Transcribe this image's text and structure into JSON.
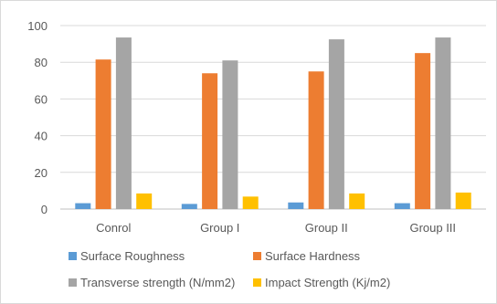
{
  "chart_data": {
    "type": "bar",
    "categories": [
      "Conrol",
      "Group I",
      "Group II",
      "Group III"
    ],
    "series": [
      {
        "name": "Surface Roughness",
        "values": [
          3.2,
          2.8,
          3.6,
          3.2
        ],
        "color": "#5b9bd5"
      },
      {
        "name": "Surface Hardness",
        "values": [
          81.5,
          74.0,
          75.0,
          85.0
        ],
        "color": "#ed7d31"
      },
      {
        "name": "Transverse strength (N/mm2)",
        "values": [
          93.5,
          81.0,
          92.5,
          93.5
        ],
        "color": "#a5a5a5"
      },
      {
        "name": "Impact Strength  (Kj/m2)",
        "values": [
          8.5,
          6.8,
          8.5,
          9.0
        ],
        "color": "#ffc000"
      }
    ],
    "ylim": [
      0,
      100
    ],
    "yticks": [
      0,
      20,
      40,
      60,
      80,
      100
    ],
    "ytick_labels": [
      "0",
      "20",
      "40",
      "60",
      "80",
      "100"
    ],
    "grid": true,
    "legend": "bottom"
  },
  "colors": {
    "grid": "#d9d9d9",
    "axis": "#bfbfbf",
    "text": "#595959",
    "frame": "#d9d9d9"
  }
}
